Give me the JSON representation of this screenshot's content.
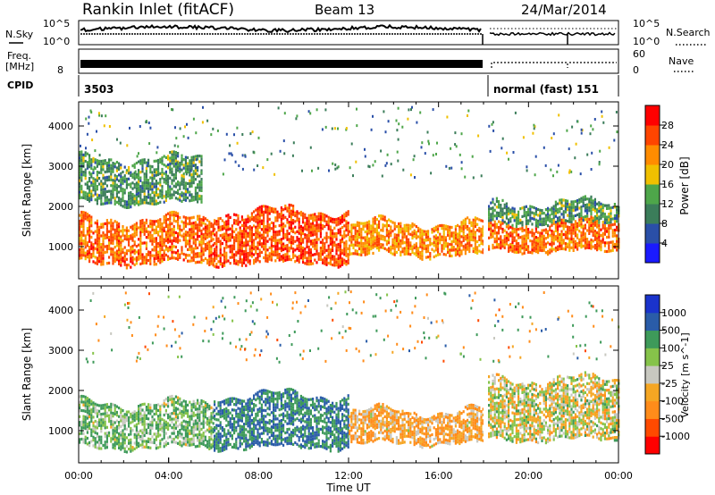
{
  "header": {
    "station_title": "Rankin Inlet (fitACF)",
    "beam_label": "Beam 13",
    "date": "24/Mar/2014"
  },
  "top_panels": {
    "nsky_label": "N.Sky",
    "nsearch_label": "N.Search",
    "nsky_ticks": [
      "10^5",
      "10^0"
    ],
    "nsearch_ticks": [
      "10^5",
      "10^0"
    ],
    "freq_label_line1": "Freq.",
    "freq_label_line2": "[MHz]",
    "freq_ticks": [
      "8"
    ],
    "nave_label": "Nave",
    "nave_ticks": [
      "60",
      "0"
    ],
    "cpid_label": "CPID",
    "cpid_first": "3503",
    "cpid_second": "normal (fast) 151"
  },
  "colors": {
    "power_scale": [
      "#1a1aff",
      "#2a4fa8",
      "#3b7d5a",
      "#4ea64a",
      "#f0c000",
      "#ff8c00",
      "#ff4500",
      "#ff0000"
    ],
    "velocity_scale": [
      "#ff0000",
      "#ff4a00",
      "#ff8c1a",
      "#f5a623",
      "#c8c8c0",
      "#86c34a",
      "#3e9a5a",
      "#2a5ca8",
      "#1a33cc"
    ],
    "ground_scatter": "#c8c8c0"
  },
  "chart_data": [
    {
      "type": "heatmap",
      "name": "power",
      "ylabel": "Slant Range [km]",
      "ylim": [
        200,
        4600
      ],
      "xlim": [
        "00:00",
        "24:00"
      ],
      "y_ticks": [
        "1000",
        "2000",
        "3000",
        "4000"
      ],
      "colorbar": {
        "label": "Power [dB]",
        "ticks": [
          "4",
          "8",
          "12",
          "16",
          "20",
          "24",
          "28"
        ],
        "range": [
          0,
          32
        ]
      },
      "regions": [
        {
          "t0": 0.0,
          "t1": 6.0,
          "r0": 600,
          "r1": 1700,
          "level": 24
        },
        {
          "t0": 6.0,
          "t1": 12.0,
          "r0": 600,
          "r1": 1900,
          "level": 26
        },
        {
          "t0": 12.0,
          "t1": 18.0,
          "r0": 800,
          "r1": 1600,
          "level": 22
        },
        {
          "t0": 18.2,
          "t1": 24.0,
          "r0": 900,
          "r1": 1600,
          "level": 24
        },
        {
          "t0": 18.2,
          "t1": 24.0,
          "r0": 1600,
          "r1": 2100,
          "level": 12
        },
        {
          "t0": 0.0,
          "t1": 5.5,
          "r0": 2100,
          "r1": 3200,
          "level": 12
        }
      ]
    },
    {
      "type": "heatmap",
      "name": "velocity",
      "ylabel": "Slant Range [km]",
      "xlabel": "Time UT",
      "ylim": [
        200,
        4600
      ],
      "x_ticks": [
        "00:00",
        "04:00",
        "08:00",
        "12:00",
        "16:00",
        "20:00",
        "00:00"
      ],
      "y_ticks": [
        "1000",
        "2000",
        "3000",
        "4000"
      ],
      "colorbar": {
        "label": "Velocity [m s^-1]",
        "ticks": [
          "-1000",
          "-500",
          "-100",
          "-25",
          "25",
          "100",
          "500",
          "1000"
        ]
      },
      "regions": [
        {
          "t0": 0.0,
          "t1": 6.0,
          "r0": 600,
          "r1": 1700,
          "level": 100
        },
        {
          "t0": 6.0,
          "t1": 12.0,
          "r0": 600,
          "r1": 1900,
          "level": 500
        },
        {
          "t0": 12.0,
          "t1": 18.0,
          "r0": 700,
          "r1": 1500,
          "level": -100
        },
        {
          "t0": 18.2,
          "t1": 24.0,
          "r0": 800,
          "r1": 2300,
          "level": 0
        }
      ]
    }
  ],
  "axes": {
    "time_label": "Time UT"
  }
}
